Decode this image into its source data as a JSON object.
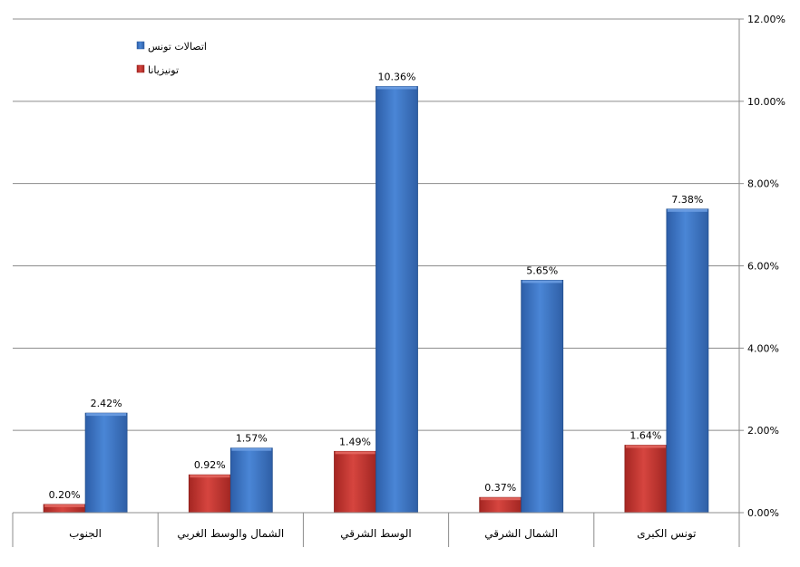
{
  "chart_data": {
    "type": "bar",
    "categories": [
      "الجنوب",
      "الشمال والوسط الغربي",
      "الوسط الشرقي",
      "الشمال الشرقي",
      "تونس الكبرى"
    ],
    "series": [
      {
        "name": "تونيزيانا",
        "color": "#c0302c",
        "values": [
          0.2,
          0.92,
          1.49,
          0.37,
          1.64
        ],
        "labels": [
          "0.20%",
          "0.92%",
          "1.49%",
          "0.37%",
          "1.64%"
        ]
      },
      {
        "name": "اتصالات تونس",
        "color": "#3f74c8",
        "values": [
          2.42,
          1.57,
          10.36,
          5.65,
          7.38
        ],
        "labels": [
          "2.42%",
          "1.57%",
          "10.36%",
          "5.65%",
          "7.38%"
        ]
      }
    ],
    "ylim": [
      0,
      12
    ],
    "yticks": [
      "0.00%",
      "2.00%",
      "4.00%",
      "6.00%",
      "8.00%",
      "10.00%",
      "12.00%"
    ],
    "y_axis_side": "right",
    "grid": true,
    "legend": "top-left",
    "legend_entries": [
      "اتصالات تونس",
      "تونيزيانا"
    ]
  }
}
